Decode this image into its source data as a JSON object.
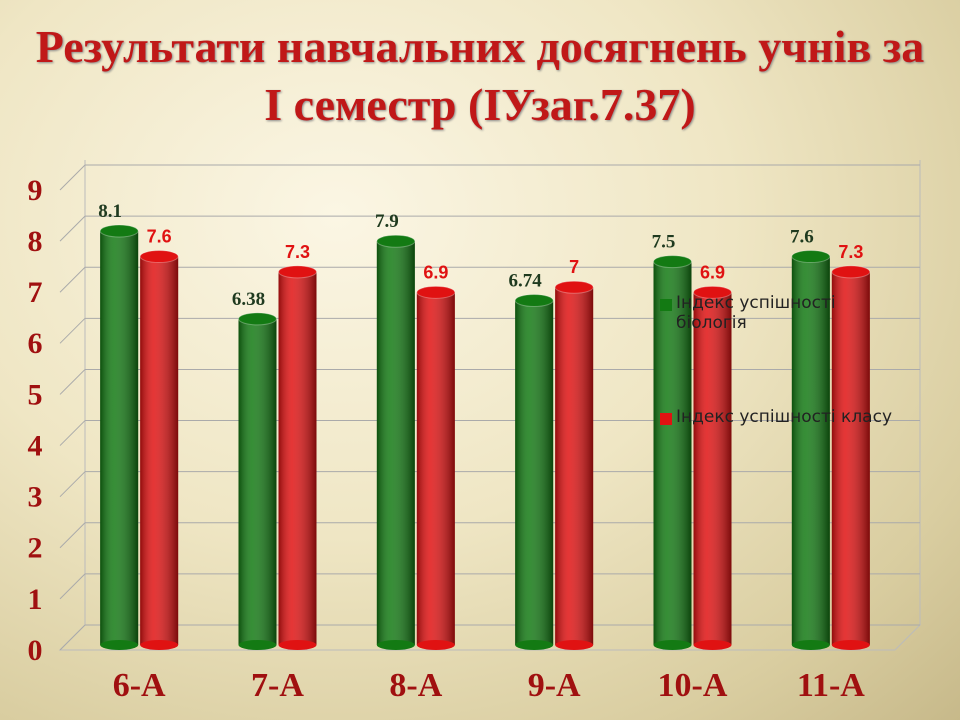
{
  "chart_data": {
    "type": "bar",
    "title": "Результати навчальних досягнень учнів за I семестр (ІУзаг.7.37)",
    "categories": [
      "6-А",
      "7-А",
      "8-А",
      "9-А",
      "10-А",
      "11-А"
    ],
    "series": [
      {
        "name": "Індекс успішності біологія",
        "color": "#137a13",
        "values": [
          8.1,
          6.38,
          7.9,
          6.74,
          7.5,
          7.6
        ]
      },
      {
        "name": "Індекс успішності класу",
        "color": "#e01212",
        "values": [
          7.6,
          7.3,
          6.9,
          7,
          6.9,
          7.3
        ]
      }
    ],
    "ylim": [
      0,
      9
    ],
    "yticks": [
      0,
      1,
      2,
      3,
      4,
      5,
      6,
      7,
      8,
      9
    ],
    "grid": true
  }
}
